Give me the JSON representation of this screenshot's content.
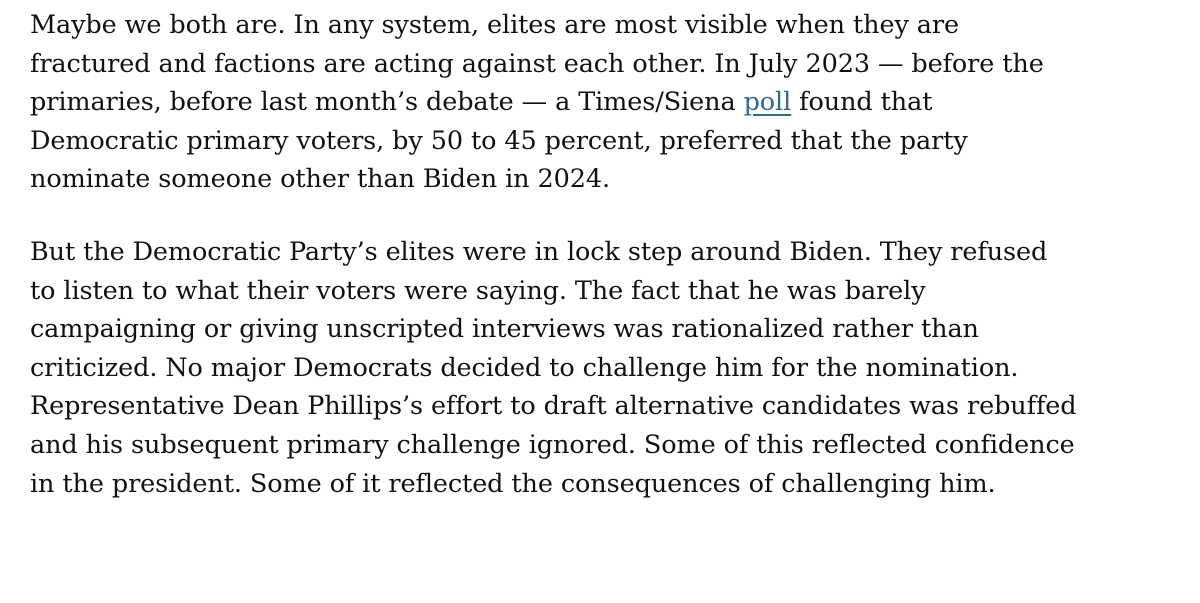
{
  "article": {
    "paragraphs": [
      {
        "lines": [
          {
            "text": "Maybe we both are. In any system, elites are most visible when they are"
          },
          {
            "text": "fractured and factions are acting against each other. In July 2023 — before the"
          },
          {
            "before": "primaries, before last month’s debate — a Times/Siena ",
            "link": "poll",
            "after": " found that"
          },
          {
            "text": "Democratic primary voters, by 50 to 45 percent, preferred that the party"
          },
          {
            "text": "nominate someone other than Biden in 2024."
          }
        ]
      },
      {
        "lines": [
          {
            "text": "But the Democratic Party’s elites were in lock step around Biden. They refused"
          },
          {
            "text": "to listen to what their voters were saying. The fact that he was barely"
          },
          {
            "text": "campaigning or giving unscripted interviews was rationalized rather than"
          },
          {
            "text": "criticized. No major Democrats decided to challenge him for the nomination."
          },
          {
            "text": "Representative Dean Phillips’s effort to draft alternative candidates was rebuffed"
          },
          {
            "text": "and his subsequent primary challenge ignored. Some of this reflected confidence"
          },
          {
            "text": "in the president. Some of it reflected the consequences of challenging him."
          }
        ]
      }
    ]
  }
}
